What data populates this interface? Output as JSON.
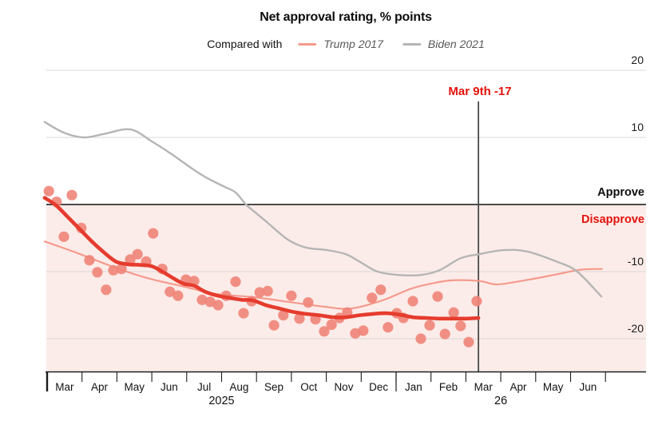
{
  "title": "Net approval rating, % points",
  "legend": {
    "prefix": "Compared with",
    "items": [
      {
        "name": "trump-2017",
        "label": "Trump 2017",
        "color": "#f59a8c"
      },
      {
        "name": "biden-2021",
        "label": "Biden 2021",
        "color": "#b5b5b5"
      }
    ]
  },
  "annotation": {
    "label": "Mar 9th -17",
    "t": 12.36,
    "value": -17
  },
  "side_labels": {
    "approve": "Approve",
    "disapprove": "Disapprove"
  },
  "colors": {
    "trump2025_line": "#e53c2e",
    "trump2017_line": "#f59a8c",
    "biden2021_line": "#b5b5b5",
    "poll_dots": "#ef8478",
    "disapprove_fill": "#fcece9",
    "gridline": "#d9d9d9",
    "zero_line": "#111111",
    "axis": "#1a1a1a",
    "annotation_line": "#4a4a4a",
    "annotation_text": "#e3120b",
    "approve_text": "#0d0d0d",
    "disapprove_text": "#e3120b",
    "tick_label": "#1a1a1a"
  },
  "chart_data": {
    "type": "line+scatter",
    "x_unit": "months since 1 Mar 2025",
    "month_labels": [
      "Mar",
      "Apr",
      "May",
      "Jun",
      "Jul",
      "Aug",
      "Sep",
      "Oct",
      "Nov",
      "Dec",
      "Jan",
      "Feb",
      "Mar",
      "Apr",
      "May",
      "Jun"
    ],
    "years": [
      {
        "label": "2025",
        "t_center": 5.0,
        "t_tick": 0,
        "thick_tick": true
      },
      {
        "label": "26",
        "t_center": 13.0,
        "t_tick": 10,
        "thick_tick": false
      }
    ],
    "y_ticks": [
      20,
      10,
      -10,
      -20
    ],
    "zero": 0,
    "ylim": [
      -24.5,
      21
    ],
    "xlim": [
      0,
      17
    ],
    "grid": true,
    "series": [
      {
        "name": "Trump 2025 (smoothed average)",
        "color_key": "trump2025_line",
        "width": 4.6,
        "points": [
          [
            -0.07,
            1.0
          ],
          [
            0.25,
            -0.1
          ],
          [
            0.6,
            -1.9
          ],
          [
            0.94,
            -3.7
          ],
          [
            1.28,
            -5.5
          ],
          [
            1.62,
            -7.1
          ],
          [
            1.97,
            -8.5
          ],
          [
            2.31,
            -8.9
          ],
          [
            2.65,
            -9.0
          ],
          [
            3.0,
            -9.2
          ],
          [
            3.3,
            -10.0
          ],
          [
            3.62,
            -11.0
          ],
          [
            3.91,
            -11.8
          ],
          [
            4.21,
            -12.1
          ],
          [
            4.53,
            -13.0
          ],
          [
            4.9,
            -13.6
          ],
          [
            5.22,
            -13.9
          ],
          [
            5.58,
            -14.2
          ],
          [
            5.9,
            -14.3
          ],
          [
            6.27,
            -15.0
          ],
          [
            6.66,
            -15.5
          ],
          [
            7.05,
            -16.0
          ],
          [
            7.41,
            -16.3
          ],
          [
            7.8,
            -16.5
          ],
          [
            8.19,
            -16.8
          ],
          [
            8.56,
            -16.8
          ],
          [
            8.95,
            -16.5
          ],
          [
            9.34,
            -16.3
          ],
          [
            9.7,
            -16.2
          ],
          [
            10.09,
            -16.4
          ],
          [
            10.48,
            -16.8
          ],
          [
            10.85,
            -16.9
          ],
          [
            11.24,
            -17.0
          ],
          [
            11.62,
            -17.0
          ],
          [
            11.99,
            -17.0
          ],
          [
            12.36,
            -16.9
          ]
        ]
      },
      {
        "name": "Trump 2017",
        "color_key": "trump2017_line",
        "width": 2.2,
        "points": [
          [
            -0.07,
            -5.5
          ],
          [
            0.9,
            -7.3
          ],
          [
            2.0,
            -9.5
          ],
          [
            2.9,
            -11.0
          ],
          [
            3.9,
            -12.2
          ],
          [
            4.8,
            -13.3
          ],
          [
            5.9,
            -13.8
          ],
          [
            6.9,
            -14.5
          ],
          [
            7.9,
            -15.2
          ],
          [
            8.7,
            -15.5
          ],
          [
            9.6,
            -14.3
          ],
          [
            10.4,
            -12.6
          ],
          [
            11.0,
            -11.8
          ],
          [
            11.6,
            -11.3
          ],
          [
            12.4,
            -11.4
          ],
          [
            12.9,
            -11.9
          ],
          [
            13.8,
            -11.2
          ],
          [
            14.6,
            -10.4
          ],
          [
            15.3,
            -9.7
          ],
          [
            15.9,
            -9.6
          ]
        ]
      },
      {
        "name": "Biden 2021",
        "color_key": "biden2021_line",
        "width": 2.4,
        "points": [
          [
            -0.07,
            12.3
          ],
          [
            0.48,
            10.7
          ],
          [
            1.05,
            10.0
          ],
          [
            1.62,
            10.5
          ],
          [
            2.38,
            11.2
          ],
          [
            3.0,
            9.4
          ],
          [
            3.57,
            7.5
          ],
          [
            4.14,
            5.4
          ],
          [
            4.6,
            3.9
          ],
          [
            5.06,
            2.7
          ],
          [
            5.4,
            1.8
          ],
          [
            5.7,
            0.0
          ],
          [
            5.97,
            -1.2
          ],
          [
            6.27,
            -2.5
          ],
          [
            6.89,
            -5.2
          ],
          [
            7.41,
            -6.4
          ],
          [
            8.03,
            -6.8
          ],
          [
            8.56,
            -7.4
          ],
          [
            8.95,
            -8.5
          ],
          [
            9.47,
            -10.0
          ],
          [
            10.09,
            -10.5
          ],
          [
            10.71,
            -10.5
          ],
          [
            11.24,
            -9.8
          ],
          [
            11.85,
            -8.0
          ],
          [
            12.38,
            -7.4
          ],
          [
            13.07,
            -6.8
          ],
          [
            13.75,
            -7.0
          ],
          [
            14.6,
            -8.5
          ],
          [
            15.19,
            -10.0
          ],
          [
            15.88,
            -13.7
          ]
        ]
      }
    ],
    "scatter": {
      "name": "Individual polls, Trump 2025",
      "color_key": "poll_dots",
      "radius": 6.6,
      "points": [
        [
          0.05,
          2.0
        ],
        [
          0.27,
          0.4
        ],
        [
          0.48,
          -4.8
        ],
        [
          0.71,
          1.4
        ],
        [
          0.98,
          -3.5
        ],
        [
          1.21,
          -8.3
        ],
        [
          1.44,
          -10.1
        ],
        [
          1.69,
          -12.7
        ],
        [
          1.9,
          -9.8
        ],
        [
          2.13,
          -9.6
        ],
        [
          2.38,
          -8.2
        ],
        [
          2.59,
          -7.4
        ],
        [
          2.84,
          -8.5
        ],
        [
          3.04,
          -4.3
        ],
        [
          3.3,
          -9.6
        ],
        [
          3.52,
          -13.0
        ],
        [
          3.75,
          -13.6
        ],
        [
          3.98,
          -11.2
        ],
        [
          4.21,
          -11.4
        ],
        [
          4.44,
          -14.2
        ],
        [
          4.67,
          -14.5
        ],
        [
          4.9,
          -15.0
        ],
        [
          5.13,
          -13.6
        ],
        [
          5.4,
          -11.5
        ],
        [
          5.63,
          -16.2
        ],
        [
          5.86,
          -14.4
        ],
        [
          6.09,
          -13.1
        ],
        [
          6.32,
          -12.9
        ],
        [
          6.5,
          -18.0
        ],
        [
          6.77,
          -16.5
        ],
        [
          7.0,
          -13.6
        ],
        [
          7.23,
          -17.0
        ],
        [
          7.48,
          -14.6
        ],
        [
          7.69,
          -17.1
        ],
        [
          7.94,
          -18.9
        ],
        [
          8.15,
          -17.9
        ],
        [
          8.38,
          -16.9
        ],
        [
          8.6,
          -16.1
        ],
        [
          8.83,
          -19.2
        ],
        [
          9.06,
          -18.8
        ],
        [
          9.31,
          -13.9
        ],
        [
          9.56,
          -12.7
        ],
        [
          9.77,
          -18.3
        ],
        [
          10.02,
          -16.2
        ],
        [
          10.21,
          -16.9
        ],
        [
          10.48,
          -14.4
        ],
        [
          10.71,
          -20.0
        ],
        [
          10.96,
          -18.0
        ],
        [
          11.19,
          -13.7
        ],
        [
          11.4,
          -19.3
        ],
        [
          11.65,
          -16.1
        ],
        [
          11.85,
          -18.1
        ],
        [
          12.08,
          -20.5
        ],
        [
          12.31,
          -14.4
        ]
      ]
    }
  }
}
